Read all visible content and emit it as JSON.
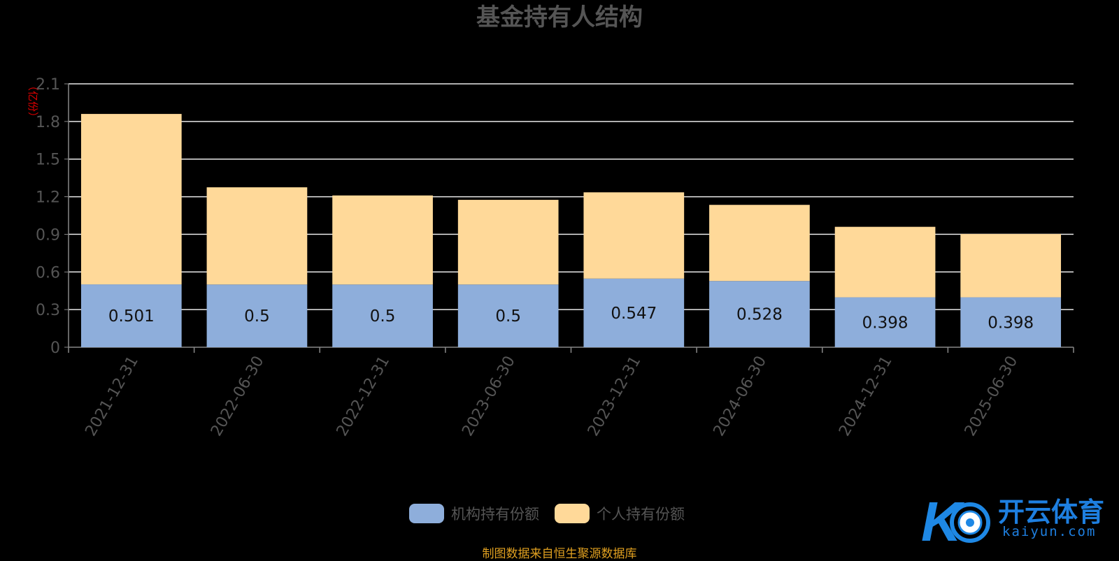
{
  "chart_data": {
    "type": "bar",
    "stacked": true,
    "title": "基金持有人结构",
    "unit_label": "（亿份）",
    "categories": [
      "2021-12-31",
      "2022-06-30",
      "2022-12-31",
      "2023-06-30",
      "2023-12-31",
      "2024-06-30",
      "2024-12-31",
      "2025-06-30"
    ],
    "series": [
      {
        "name": "机构持有份额",
        "color": "#8eaedb",
        "values": [
          0.501,
          0.5,
          0.5,
          0.5,
          0.547,
          0.528,
          0.398,
          0.398
        ],
        "show_labels": true
      },
      {
        "name": "个人持有份额",
        "color": "#ffd999",
        "values": [
          1.359,
          0.775,
          0.71,
          0.675,
          0.688,
          0.607,
          0.562,
          0.505
        ],
        "show_labels": false
      }
    ],
    "yticks": [
      "0",
      "0.3",
      "0.6",
      "0.9",
      "1.2",
      "1.5",
      "1.8",
      "2.1"
    ],
    "ylim": [
      0,
      2.1
    ],
    "grid": true,
    "legend_position": "bottom-center"
  },
  "source_note": "制图数据来自恒生聚源数据库",
  "watermark": {
    "brand": "开云体育",
    "domain": "kaiyun.com"
  }
}
